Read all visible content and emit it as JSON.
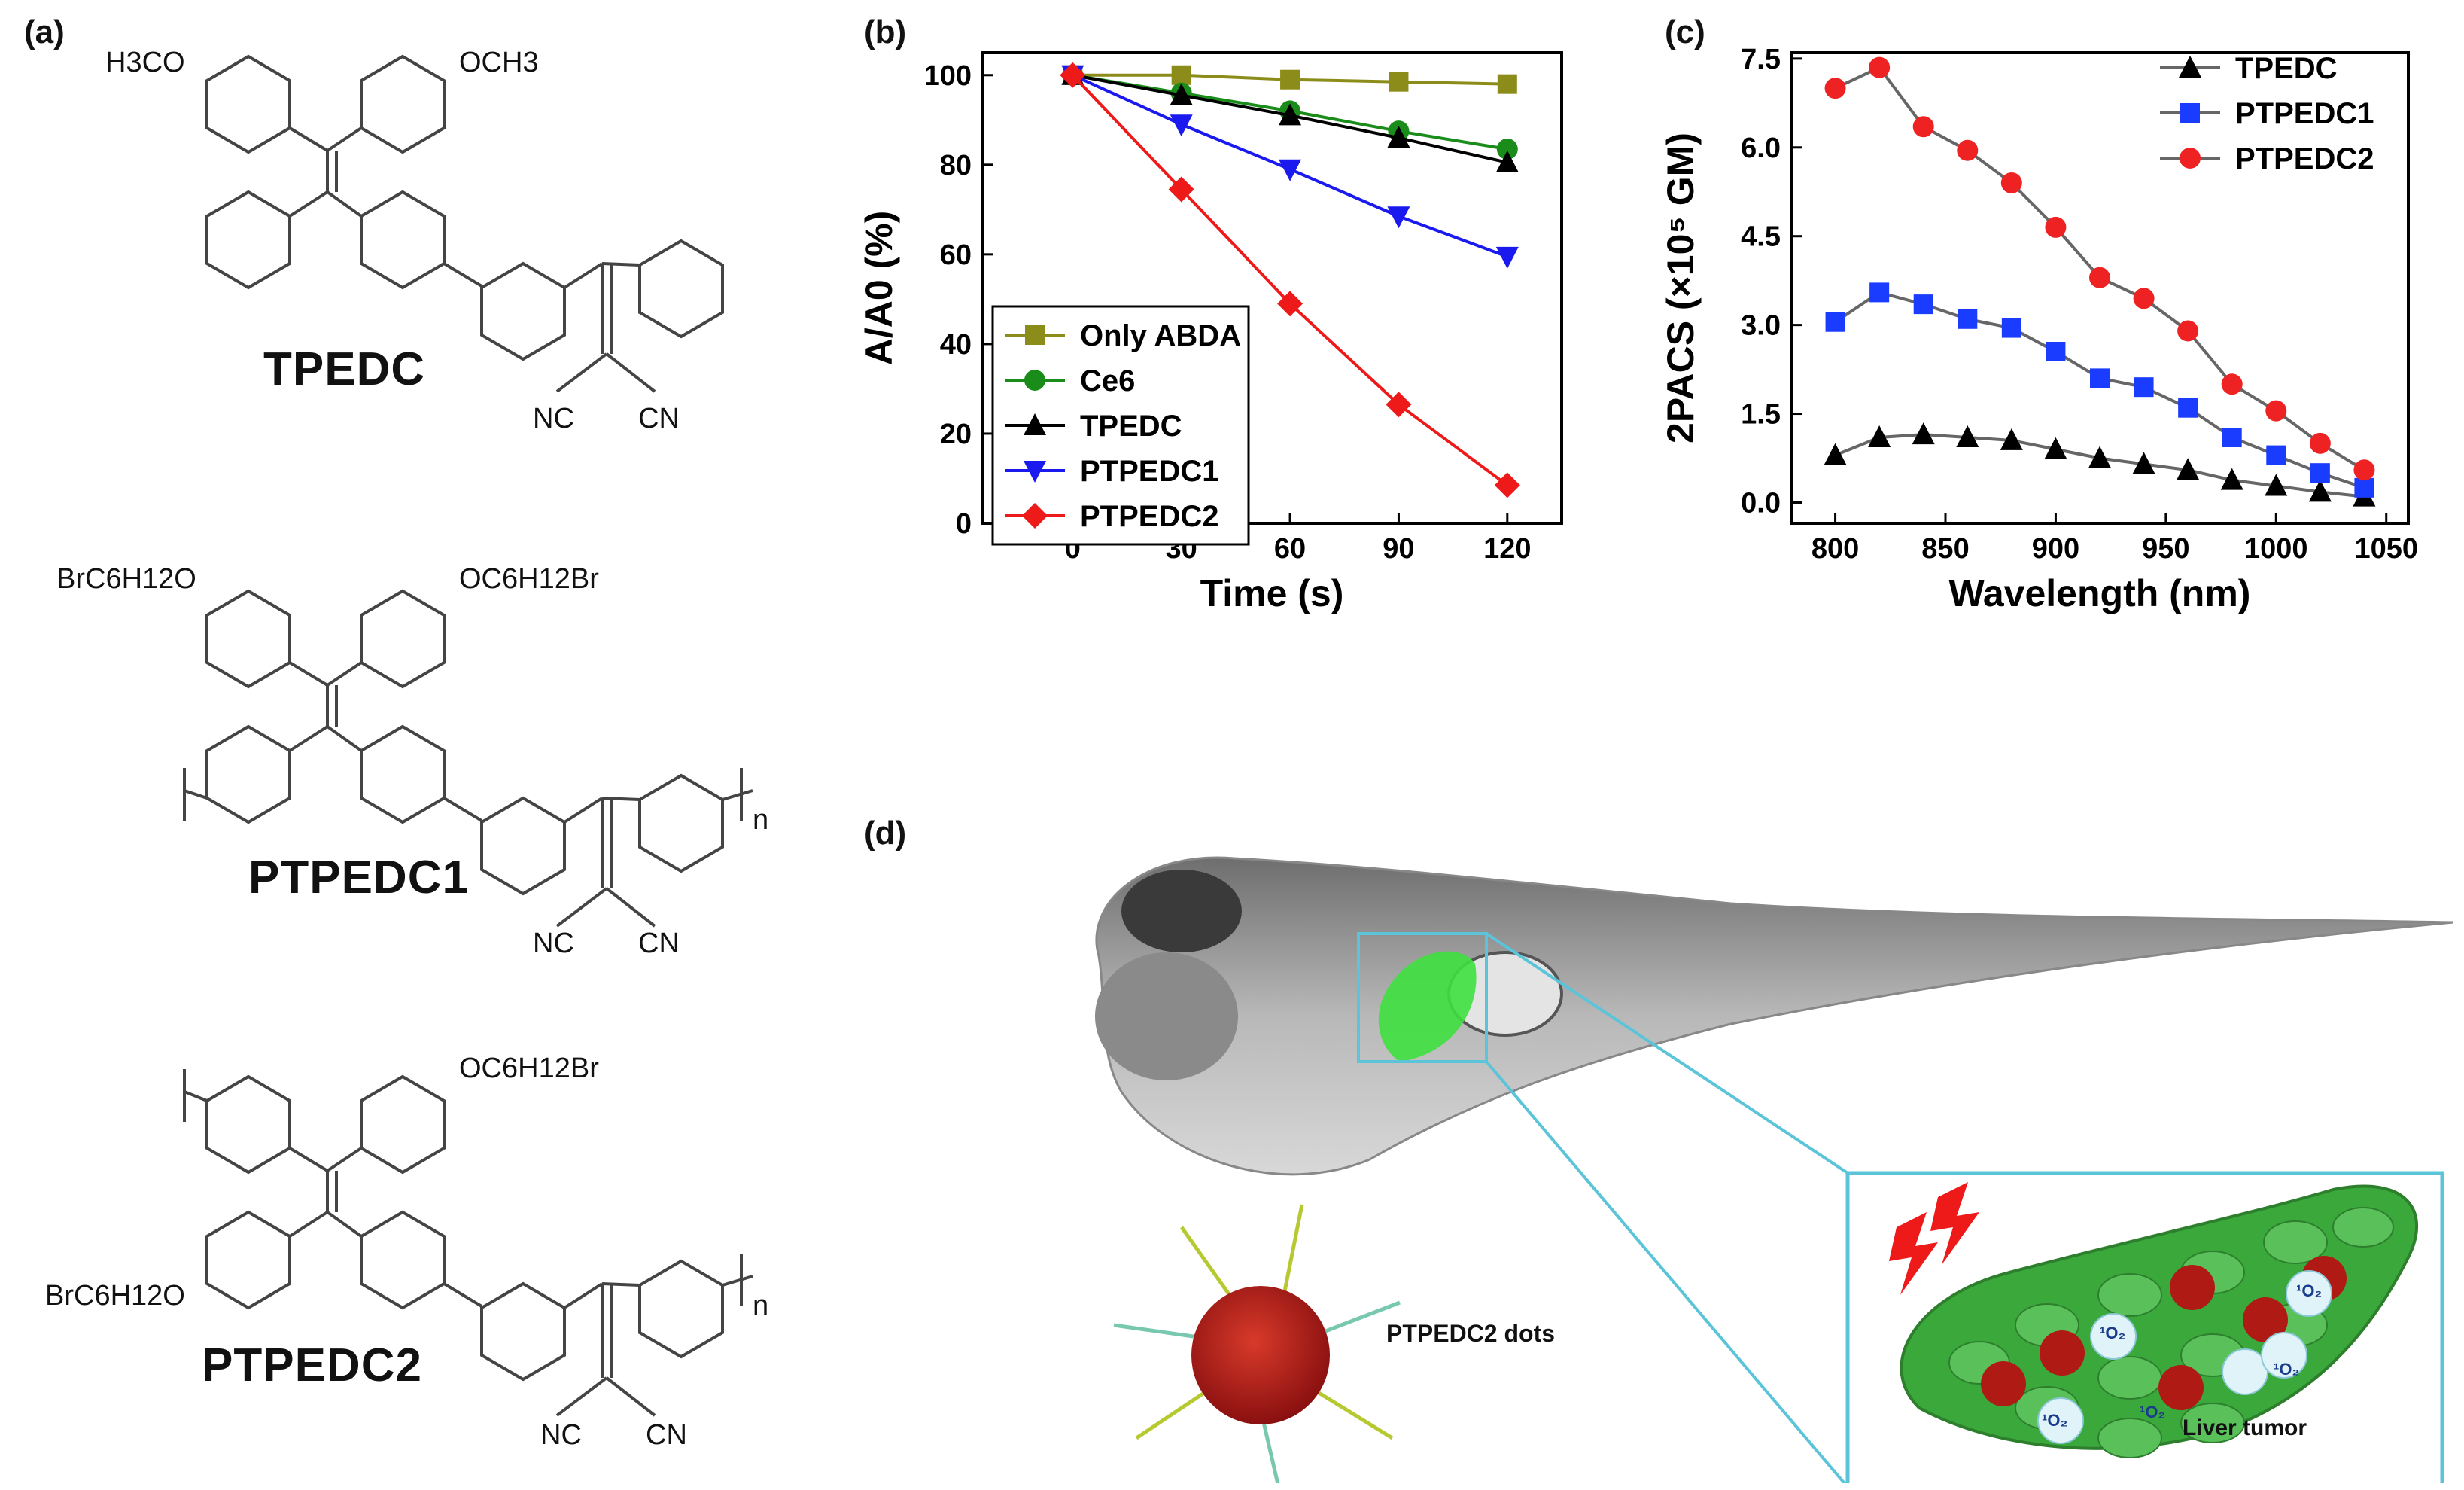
{
  "panel_labels": {
    "a": "(a)",
    "b": "(b)",
    "c": "(c)",
    "d": "(d)"
  },
  "structures": {
    "tpedc": {
      "name": "TPEDC",
      "top_left": "H3CO",
      "top_right": "OCH3",
      "cn_left": "NC",
      "cn_right": "CN"
    },
    "ptpedc1": {
      "name": "PTPEDC1",
      "top_left": "BrC6H12O",
      "top_right": "OC6H12Br",
      "repeat": "n",
      "cn_left": "NC",
      "cn_right": "CN"
    },
    "ptpedc2": {
      "name": "PTPEDC2",
      "top_right": "OC6H12Br",
      "bottom_left": "BrC6H12O",
      "repeat": "n",
      "cn_left": "NC",
      "cn_right": "CN"
    }
  },
  "colors": {
    "only_abda": "#8c8c1a",
    "ce6": "#1a8c1a",
    "tpedc": "#000000",
    "ptpedc1": "#1a1aee",
    "ptpedc2": "#ee1a1a",
    "tpedc_c": "#000000",
    "ptpedc1_c": "#1a3cff",
    "ptpedc2_c": "#ee2222",
    "tissue_green": "#3aa83a",
    "box_cyan": "#5bc4d8"
  },
  "chart_data": [
    {
      "type": "line",
      "panel": "(b)",
      "xlabel": "Time (s)",
      "ylabel": "A/A0 (%)",
      "xlim": [
        -25,
        135
      ],
      "ylim": [
        0,
        105
      ],
      "xticks": [
        0,
        30,
        60,
        90,
        120
      ],
      "yticks": [
        0,
        20,
        40,
        60,
        80,
        100
      ],
      "x": [
        0,
        30,
        60,
        90,
        120
      ],
      "legend_position": "bottom-left",
      "series": [
        {
          "name": "Only ABDA",
          "marker": "square",
          "color_key": "only_abda",
          "values": [
            100,
            100,
            99,
            98.5,
            98
          ]
        },
        {
          "name": "Ce6",
          "marker": "circle",
          "color_key": "ce6",
          "values": [
            100,
            96,
            92,
            87.5,
            83.5
          ]
        },
        {
          "name": "TPEDC",
          "marker": "triangle-up",
          "color_key": "tpedc",
          "values": [
            100,
            95.5,
            91,
            86,
            80.5
          ]
        },
        {
          "name": "PTPEDC1",
          "marker": "triangle-down",
          "color_key": "ptpedc1",
          "values": [
            100,
            89,
            79,
            68.5,
            59.5
          ]
        },
        {
          "name": "PTPEDC2",
          "marker": "diamond",
          "color_key": "ptpedc2",
          "values": [
            100,
            74.5,
            49,
            26.5,
            8.5
          ]
        }
      ]
    },
    {
      "type": "line",
      "panel": "(c)",
      "xlabel": "Wavelength (nm)",
      "ylabel": "2PACS (×10⁵ GM)",
      "xlim": [
        780,
        1060
      ],
      "ylim": [
        -0.35,
        7.6
      ],
      "xticks": [
        800,
        850,
        900,
        950,
        1000,
        1050
      ],
      "yticks": [
        0.0,
        1.5,
        3.0,
        4.5,
        6.0,
        7.5
      ],
      "ytick_labels": [
        "0.0",
        "1.5",
        "3.0",
        "4.5",
        "6.0",
        "7.5"
      ],
      "x": [
        800,
        820,
        840,
        860,
        880,
        900,
        920,
        940,
        960,
        980,
        1000,
        1020,
        1040
      ],
      "legend_position": "top-right",
      "series": [
        {
          "name": "TPEDC",
          "marker": "triangle-up",
          "color_key": "tpedc_c",
          "values": [
            0.8,
            1.1,
            1.15,
            1.1,
            1.05,
            0.9,
            0.75,
            0.65,
            0.55,
            0.38,
            0.28,
            0.18,
            0.1
          ]
        },
        {
          "name": "PTPEDC1",
          "marker": "square",
          "color_key": "ptpedc1_c",
          "values": [
            3.05,
            3.55,
            3.35,
            3.1,
            2.95,
            2.55,
            2.1,
            1.95,
            1.6,
            1.1,
            0.8,
            0.5,
            0.25
          ]
        },
        {
          "name": "PTPEDC2",
          "marker": "circle",
          "color_key": "ptpedc2_c",
          "values": [
            7.0,
            7.35,
            6.35,
            5.95,
            5.4,
            4.65,
            3.8,
            3.45,
            2.9,
            2.0,
            1.55,
            1.0,
            0.55
          ]
        }
      ]
    }
  ],
  "illustration": {
    "dots_label": "PTPEDC2 dots",
    "tumor_label": "Liver tumor",
    "singlet_oxygen": "¹O₂"
  }
}
